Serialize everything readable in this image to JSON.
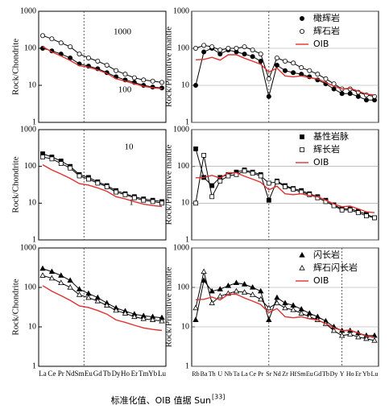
{
  "chart_data": [
    {
      "type": "line",
      "ylabel": "Rock/Chondrite",
      "log_scale": true,
      "grid": false,
      "categories": [
        null,
        null,
        null,
        null,
        null,
        null,
        null,
        null,
        null,
        null,
        null,
        null,
        null,
        null
      ],
      "ylim": [
        1,
        1000
      ],
      "yticks": [
        1,
        10,
        100,
        1000
      ],
      "annotations": [
        "1000",
        "100"
      ],
      "series": [
        {
          "marker": "circle-filled",
          "color": "#000000",
          "values": [
            100,
            85,
            70,
            55,
            38,
            33,
            28,
            22,
            17,
            14,
            12,
            10,
            9,
            8.5
          ]
        },
        {
          "marker": "circle-open",
          "color": "#000000",
          "values": [
            220,
            180,
            140,
            110,
            70,
            55,
            45,
            35,
            25,
            20,
            16,
            14,
            13,
            12
          ]
        },
        {
          "marker": "none",
          "color": "#e03030",
          "values": [
            111,
            80,
            62,
            47,
            34,
            31,
            26,
            21,
            15,
            13,
            11,
            9.4,
            8.6,
            8.1
          ]
        }
      ]
    },
    {
      "type": "line",
      "ylabel": "Rock/Primitive mantle",
      "log_scale": true,
      "grid": true,
      "legend": "upper right",
      "categories": [
        null,
        null,
        null,
        null,
        null,
        null,
        null,
        null,
        null,
        null,
        null,
        null,
        null,
        null,
        null,
        null,
        null,
        null,
        null,
        null,
        null,
        null,
        null
      ],
      "ylim": [
        1,
        1000
      ],
      "yticks": [
        1,
        10,
        100,
        1000
      ],
      "series": [
        {
          "name": "橄辉岩",
          "marker": "circle-filled",
          "color": "#000000",
          "values": [
            10,
            80,
            100,
            70,
            90,
            80,
            70,
            60,
            45,
            5,
            35,
            25,
            22,
            20,
            17,
            14,
            11,
            8,
            6,
            6,
            5,
            4,
            4
          ]
        },
        {
          "name": "辉石岩",
          "marker": "circle-open",
          "color": "#000000",
          "values": [
            100,
            120,
            110,
            90,
            100,
            100,
            110,
            90,
            70,
            15,
            55,
            45,
            40,
            30,
            25,
            20,
            15,
            11,
            8,
            8,
            6.5,
            5.5,
            5
          ]
        },
        {
          "name": "OIB",
          "marker": "none",
          "color": "#e03030",
          "values": [
            49,
            50,
            57,
            48,
            67,
            67,
            54,
            45,
            37,
            23,
            29,
            18,
            17,
            18,
            16,
            15,
            12,
            9.5,
            8,
            8.3,
            7,
            5.8,
            5.5
          ]
        }
      ]
    },
    {
      "type": "line",
      "ylabel": "Rock/Chondrite",
      "log_scale": true,
      "grid": false,
      "categories": [
        null,
        null,
        null,
        null,
        null,
        null,
        null,
        null,
        null,
        null,
        null,
        null,
        null,
        null
      ],
      "ylim": [
        1,
        1000
      ],
      "yticks": [
        1,
        10,
        100,
        1000
      ],
      "annotations": [
        "10",
        "1"
      ],
      "series": [
        {
          "marker": "square-filled",
          "color": "#000000",
          "values": [
            220,
            180,
            140,
            100,
            60,
            50,
            38,
            30,
            22,
            18,
            15,
            13,
            12,
            11
          ]
        },
        {
          "marker": "square-open",
          "color": "#000000",
          "values": [
            180,
            160,
            120,
            90,
            55,
            45,
            35,
            28,
            20,
            17,
            14,
            12,
            11,
            10
          ]
        },
        {
          "marker": "none",
          "color": "#e03030",
          "values": [
            111,
            80,
            62,
            47,
            34,
            31,
            26,
            21,
            15,
            13,
            11,
            9.4,
            8.6,
            8.1
          ]
        }
      ]
    },
    {
      "type": "line",
      "ylabel": "Rock/Primitive mantle",
      "log_scale": true,
      "grid": true,
      "legend": "upper right",
      "categories": [
        null,
        null,
        null,
        null,
        null,
        null,
        null,
        null,
        null,
        null,
        null,
        null,
        null,
        null,
        null,
        null,
        null,
        null,
        null,
        null,
        null,
        null,
        null
      ],
      "ylim": [
        1,
        1000
      ],
      "yticks": [
        1,
        10,
        100,
        1000
      ],
      "series": [
        {
          "name": "基性岩脉",
          "marker": "square-filled",
          "color": "#000000",
          "values": [
            300,
            50,
            30,
            50,
            60,
            70,
            80,
            70,
            60,
            12,
            40,
            30,
            25,
            22,
            18,
            15,
            12,
            9,
            7,
            7,
            6,
            5,
            4
          ]
        },
        {
          "name": "辉长岩",
          "marker": "square-open",
          "color": "#000000",
          "values": [
            10,
            200,
            15,
            40,
            55,
            60,
            75,
            65,
            55,
            35,
            38,
            28,
            24,
            20,
            17,
            14,
            11,
            8.5,
            6.5,
            6.5,
            5.5,
            4.5,
            4
          ]
        },
        {
          "name": "OIB",
          "marker": "none",
          "color": "#e03030",
          "values": [
            49,
            50,
            57,
            48,
            67,
            67,
            54,
            45,
            37,
            23,
            29,
            18,
            17,
            18,
            16,
            15,
            12,
            9.5,
            8,
            8.3,
            7,
            5.8,
            5.5
          ]
        }
      ]
    },
    {
      "type": "line",
      "ylabel": "Rock/Chondrite",
      "log_scale": true,
      "grid": false,
      "categories": [
        "La",
        "Ce",
        "Pr",
        "Nd",
        "Sm",
        "Eu",
        "Gd",
        "Tb",
        "Dy",
        "Ho",
        "Er",
        "Tm",
        "Yb",
        "Lu"
      ],
      "ylim": [
        1,
        1000
      ],
      "yticks": [
        1,
        10,
        100,
        1000
      ],
      "series": [
        {
          "marker": "triangle-filled",
          "color": "#000000",
          "values": [
            300,
            250,
            200,
            150,
            90,
            70,
            55,
            40,
            30,
            25,
            21,
            19,
            18,
            17
          ]
        },
        {
          "marker": "triangle-open",
          "color": "#000000",
          "values": [
            200,
            170,
            130,
            100,
            65,
            55,
            45,
            35,
            26,
            22,
            18,
            16,
            15,
            14
          ]
        },
        {
          "marker": "none",
          "color": "#e03030",
          "values": [
            111,
            80,
            62,
            47,
            34,
            31,
            26,
            21,
            15,
            13,
            11,
            9.4,
            8.6,
            8.1
          ]
        }
      ]
    },
    {
      "type": "line",
      "ylabel": "Rock/Primitive mantle",
      "log_scale": true,
      "grid": true,
      "legend": "upper right",
      "categories": [
        "Rb",
        "Ba",
        "Th",
        "U",
        "Nb",
        "Ta",
        "La",
        "Ce",
        "Pr",
        "Sr",
        "Nd",
        "Zr",
        "Hf",
        "Sm",
        "Eu",
        "Gd",
        "Tb",
        "Dy",
        "Y",
        "Ho",
        "Er",
        "Yb",
        "Lu"
      ],
      "ylim": [
        1,
        1000
      ],
      "yticks": [
        1,
        10,
        100,
        1000
      ],
      "series": [
        {
          "name": "闪长岩",
          "marker": "triangle-filled",
          "color": "#000000",
          "values": [
            15,
            150,
            80,
            90,
            110,
            130,
            120,
            100,
            80,
            15,
            55,
            40,
            35,
            28,
            22,
            18,
            14,
            10,
            8,
            8,
            7,
            6,
            6
          ]
        },
        {
          "name": "辉石闪长岩",
          "marker": "triangle-open",
          "color": "#000000",
          "values": [
            30,
            250,
            40,
            60,
            70,
            80,
            75,
            65,
            50,
            30,
            40,
            30,
            27,
            22,
            18,
            15,
            12,
            8,
            6,
            6.5,
            5.5,
            5,
            4.5
          ]
        },
        {
          "name": "OIB",
          "marker": "none",
          "color": "#e03030",
          "values": [
            49,
            50,
            57,
            48,
            67,
            67,
            54,
            45,
            37,
            23,
            29,
            18,
            17,
            18,
            16,
            15,
            12,
            9.5,
            8,
            8.3,
            7,
            5.8,
            5.5
          ]
        }
      ]
    }
  ],
  "caption": {
    "text": "标准化值、OIB 值据 Sun",
    "ref": "[33]"
  }
}
